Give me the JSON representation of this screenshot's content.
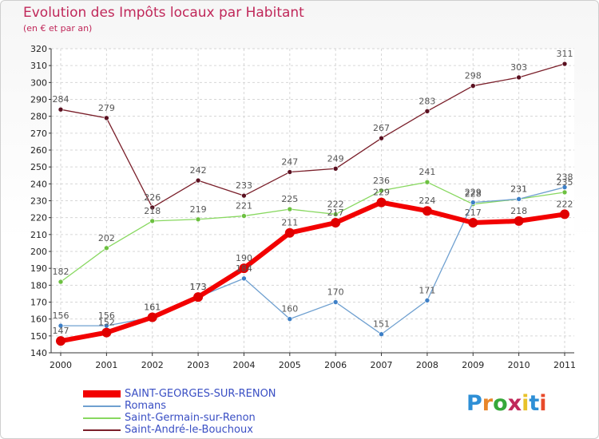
{
  "header": {
    "title": "Evolution des Impôts locaux par Habitant",
    "subtitle": "(en € et par an)"
  },
  "logo": {
    "text": "Proxiti",
    "colors": [
      "#2e8fd6",
      "#e8862a",
      "#36a83a",
      "#c0285a",
      "#e8c22a",
      "#2e8fd6",
      "#e84a2a"
    ]
  },
  "chart_data": {
    "type": "line",
    "title": "Evolution des Impôts locaux par Habitant",
    "subtitle": "(en € et par an)",
    "xlabel": "",
    "ylabel": "",
    "x": [
      "2000",
      "2001",
      "2002",
      "2003",
      "2004",
      "2005",
      "2006",
      "2007",
      "2008",
      "2009",
      "2010",
      "2011"
    ],
    "ylim": [
      140,
      320
    ],
    "yticks": [
      140,
      150,
      160,
      170,
      180,
      190,
      200,
      210,
      220,
      230,
      240,
      250,
      260,
      270,
      280,
      290,
      300,
      310,
      320
    ],
    "grid": true,
    "legend_position": "bottom-left",
    "series": [
      {
        "name": "Saint-André-le-Bouchoux",
        "color": "#7a1f2a",
        "marker": "#5a1020",
        "values": [
          284,
          279,
          226,
          242,
          233,
          247,
          249,
          267,
          283,
          298,
          303,
          311
        ]
      },
      {
        "name": "Saint-Germain-sur-Renon",
        "color": "#88d860",
        "marker": "#6cc040",
        "values": [
          182,
          202,
          218,
          219,
          221,
          225,
          222,
          236,
          241,
          228,
          231,
          235
        ]
      },
      {
        "name": "Romans",
        "color": "#6fa0d0",
        "marker": "#3d7fc6",
        "values": [
          156,
          156,
          161,
          173,
          184,
          160,
          170,
          151,
          171,
          229,
          231,
          238
        ]
      },
      {
        "name": "SAINT-GEORGES-SUR-RENON",
        "color": "#f20000",
        "marker": "#e00000",
        "values": [
          147,
          152,
          161,
          173,
          190,
          211,
          217,
          229,
          224,
          217,
          218,
          222
        ]
      }
    ]
  }
}
